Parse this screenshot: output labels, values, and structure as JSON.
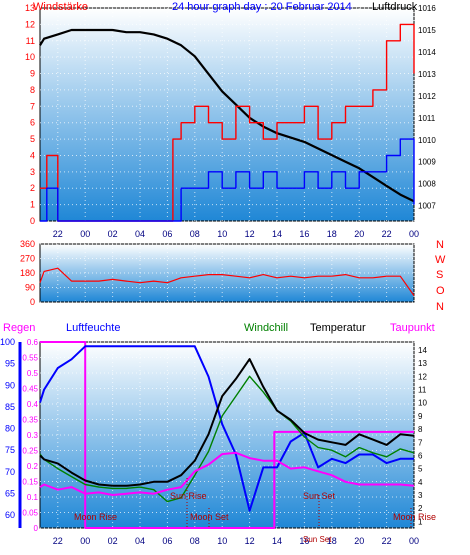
{
  "header": {
    "left_label": "Windstärke",
    "title": "24 hour graph day : 20 Februar 2014",
    "right_label": "Luftdruck"
  },
  "legend2": {
    "regen": "Regen",
    "luftfeuchte": "Luftfeuchte",
    "windchill": "Windchill",
    "temperatur": "Temperatur",
    "taupunkt": "Taupunkt"
  },
  "directions": [
    "N",
    "W",
    "S",
    "O",
    "N"
  ],
  "events": {
    "moon_rise": "Moon Rise",
    "moon_set": "Moon Set",
    "sun_rise": "Sun Rise",
    "sun_set": "Sun Set",
    "sun_set_short": "Sun Set"
  },
  "colors": {
    "wind_gust": "#ff0000",
    "wind_mean": "#0000ff",
    "pressure": "#000000",
    "direction": "#ff0000",
    "rain": "#ff00ff",
    "humidity": "#0000ff",
    "windchill": "#008000",
    "temperature": "#000000",
    "dewpoint": "#ff00ff",
    "plot_top": "#ffffff",
    "plot_bottom": "#1f87d6"
  },
  "chart_data": [
    {
      "type": "line",
      "title": "24 hour graph day : 20 Februar 2014",
      "xlabel": "",
      "x_ticks": [
        "22",
        "00",
        "02",
        "04",
        "06",
        "08",
        "10",
        "12",
        "14",
        "16",
        "18",
        "20",
        "22",
        "00"
      ],
      "y_left_label": "Windstärke",
      "y_left_ticks": [
        0,
        1,
        2,
        3,
        4,
        5,
        6,
        7,
        8,
        9,
        10,
        11,
        12,
        13
      ],
      "ylim_left": [
        0,
        13
      ],
      "y_right_label": "Luftdruck",
      "y_right_ticks": [
        1007,
        1008,
        1009,
        1010,
        1011,
        1012,
        1013,
        1014,
        1015,
        1016
      ],
      "ylim_right": [
        1006.3,
        1016
      ],
      "series": [
        {
          "name": "Luftdruck",
          "axis": "right",
          "x": [
            20.7,
            21,
            22,
            23,
            24,
            25,
            26,
            27,
            28,
            29,
            30,
            31,
            32,
            33,
            34,
            35,
            36,
            37,
            38,
            39,
            40,
            41,
            42,
            43,
            44,
            45,
            46,
            47,
            48
          ],
          "values": [
            1014.3,
            1014.6,
            1014.8,
            1015.0,
            1015.0,
            1015.0,
            1015.0,
            1014.9,
            1014.9,
            1014.8,
            1014.6,
            1014.3,
            1013.8,
            1013.0,
            1012.2,
            1011.6,
            1011.0,
            1010.6,
            1010.3,
            1010.1,
            1009.9,
            1009.6,
            1009.3,
            1009.0,
            1008.7,
            1008.3,
            1007.9,
            1007.5,
            1007.2
          ]
        },
        {
          "name": "Gust",
          "axis": "left",
          "kind": "step",
          "x": [
            20.7,
            21.2,
            22.0,
            23.2,
            24,
            25,
            26,
            27,
            28,
            29,
            30,
            30.4,
            31,
            32,
            33,
            34,
            35,
            36,
            37,
            38,
            39,
            40,
            41,
            42,
            43,
            44,
            45,
            46,
            47,
            48
          ],
          "values": [
            2,
            4,
            0,
            0,
            0,
            0,
            0,
            0,
            0,
            0,
            0,
            5,
            6,
            7,
            6,
            5,
            7,
            6,
            5,
            6,
            6,
            7,
            5,
            6,
            7,
            7,
            8,
            11,
            12,
            9
          ]
        },
        {
          "name": "Mean",
          "axis": "left",
          "kind": "step",
          "x": [
            20.7,
            21.2,
            22.0,
            30.4,
            31,
            32,
            33,
            34,
            35,
            36,
            37,
            38,
            39,
            40,
            41,
            42,
            43,
            44,
            45,
            46,
            47,
            48
          ],
          "values": [
            0,
            2,
            0,
            0,
            2,
            2,
            3,
            2,
            3,
            2,
            3,
            2,
            2,
            3,
            2,
            3,
            2,
            3,
            3,
            4,
            5,
            1
          ]
        }
      ]
    },
    {
      "type": "line",
      "xlabel": "",
      "y_ticks": [
        0,
        90,
        180,
        270,
        360
      ],
      "ylim": [
        0,
        360
      ],
      "series": [
        {
          "name": "Windrichtung",
          "x": [
            20.7,
            21,
            22,
            23,
            24,
            25,
            26,
            27,
            28,
            29,
            30,
            31,
            32,
            33,
            34,
            35,
            36,
            37,
            38,
            39,
            40,
            41,
            42,
            43,
            44,
            45,
            46,
            47,
            48
          ],
          "values": [
            120,
            190,
            210,
            130,
            130,
            130,
            140,
            130,
            120,
            130,
            120,
            150,
            160,
            170,
            170,
            160,
            150,
            170,
            150,
            160,
            150,
            160,
            160,
            170,
            150,
            150,
            160,
            160,
            40
          ]
        }
      ]
    },
    {
      "type": "line",
      "xlabel": "",
      "x_ticks": [
        "22",
        "00",
        "02",
        "04",
        "06",
        "08",
        "10",
        "12",
        "14",
        "16",
        "18",
        "20",
        "22",
        "00"
      ],
      "y_left_label": "Regen",
      "y_left_ticks": [
        0,
        0.05,
        0.1,
        0.15,
        0.2,
        0.25,
        0.3,
        0.35,
        0.4,
        0.45,
        0.5,
        0.55,
        0.6
      ],
      "ylim_left": [
        0,
        0.6
      ],
      "y_humidity_label": "Luftfeuchte",
      "y_humidity_ticks": [
        60,
        65,
        70,
        75,
        80,
        85,
        90,
        95,
        100
      ],
      "ylim_humidity": [
        57,
        100
      ],
      "y_right_ticks": [
        1,
        2,
        3,
        4,
        5,
        6,
        7,
        8,
        9,
        10,
        11,
        12,
        13,
        14
      ],
      "ylim_right": [
        0.5,
        14.6
      ],
      "series": [
        {
          "name": "Regen",
          "axis": "rain",
          "kind": "step",
          "x": [
            20.7,
            24.0,
            37.8,
            48
          ],
          "values": [
            0.6,
            0,
            0.31,
            0.31
          ]
        },
        {
          "name": "Luftfeuchte",
          "axis": "humidity",
          "x": [
            20.7,
            21,
            22,
            23,
            24,
            25,
            26,
            27,
            28,
            29,
            30,
            31,
            32,
            33,
            34,
            35,
            36,
            37,
            38,
            39,
            40,
            41,
            42,
            43,
            44,
            45,
            46,
            47,
            48
          ],
          "values": [
            86,
            89,
            94,
            96,
            99,
            99,
            99,
            99,
            99,
            99,
            99,
            99,
            99,
            92,
            81,
            74,
            61,
            71,
            71,
            77,
            79,
            71,
            73,
            72,
            74,
            74,
            72,
            73,
            73
          ]
        },
        {
          "name": "Windchill",
          "axis": "right",
          "x": [
            20.7,
            21,
            22,
            23,
            24,
            25,
            26,
            27,
            28,
            29,
            30,
            31,
            32,
            33,
            34,
            35,
            36,
            37,
            38,
            39,
            40,
            41,
            42,
            43,
            44,
            45,
            46,
            47,
            48
          ],
          "values": [
            6.1,
            5.7,
            5.0,
            4.4,
            3.8,
            3.6,
            3.5,
            3.5,
            3.6,
            3.4,
            2.5,
            2.8,
            4.5,
            6.3,
            9.0,
            10.5,
            12.0,
            10.8,
            9.4,
            8.6,
            7.4,
            6.6,
            6.4,
            5.9,
            6.6,
            6.2,
            5.9,
            6.5,
            6.2
          ]
        },
        {
          "name": "Temperatur",
          "axis": "right",
          "x": [
            20.7,
            21,
            22,
            23,
            24,
            25,
            26,
            27,
            28,
            29,
            30,
            31,
            32,
            33,
            34,
            35,
            36,
            37,
            38,
            39,
            40,
            41,
            42,
            43,
            44,
            45,
            46,
            47,
            48
          ],
          "values": [
            6.0,
            5.7,
            5.4,
            4.7,
            4.1,
            3.8,
            3.7,
            3.7,
            3.8,
            4.0,
            4.0,
            4.5,
            5.6,
            7.6,
            10.5,
            11.8,
            13.3,
            11.2,
            9.4,
            8.7,
            7.7,
            7.2,
            7.0,
            6.8,
            7.6,
            7.2,
            6.8,
            7.6,
            7.5
          ]
        },
        {
          "name": "Taupunkt",
          "axis": "right",
          "x": [
            20.7,
            21,
            22,
            23,
            24,
            25,
            26,
            27,
            28,
            29,
            30,
            31,
            32,
            33,
            34,
            35,
            36,
            37,
            38,
            39,
            40,
            41,
            42,
            43,
            44,
            45,
            46,
            47,
            48
          ],
          "values": [
            3.6,
            3.8,
            3.4,
            3.6,
            3.1,
            3.2,
            3.0,
            3.1,
            3.2,
            3.1,
            3.4,
            3.6,
            4.8,
            5.3,
            6.1,
            6.2,
            5.8,
            5.6,
            5.6,
            5.0,
            5.1,
            4.8,
            4.5,
            4.0,
            3.8,
            3.8,
            3.8,
            3.8,
            3.7
          ]
        }
      ]
    }
  ]
}
